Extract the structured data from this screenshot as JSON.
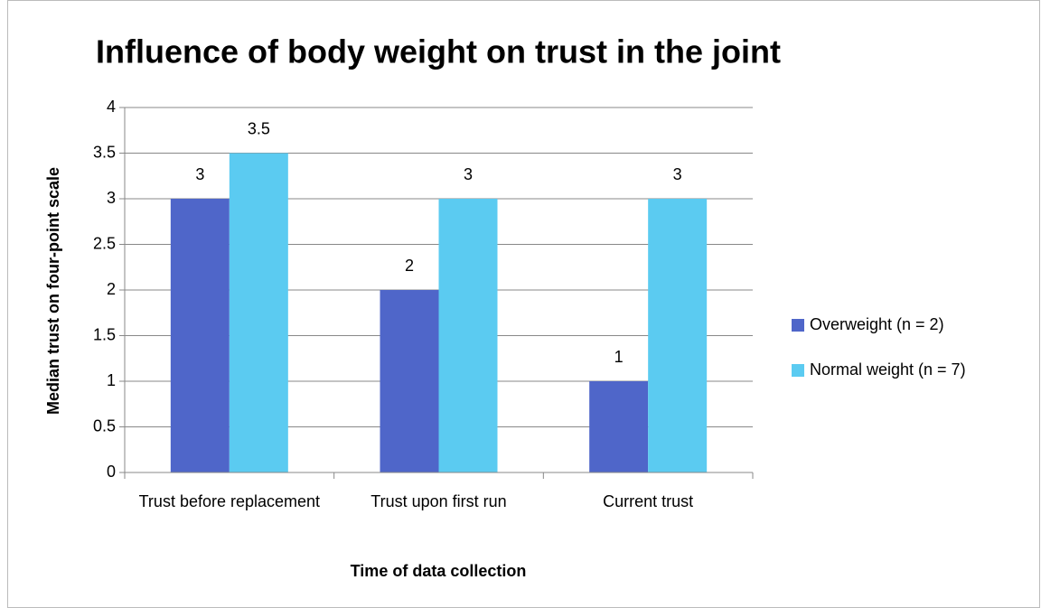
{
  "chart_data": {
    "type": "bar",
    "title": "Influence of body weight on trust in the joint",
    "x_label": "Time of data collection",
    "y_label": "Median trust on four-point scale",
    "categories": [
      "Trust before replacement",
      "Trust upon first run",
      "Current trust"
    ],
    "series": [
      {
        "name": "Overweight (n = 2)",
        "color": "#4f66c9",
        "values": [
          3,
          2,
          1
        ]
      },
      {
        "name": "Normal weight (n = 7)",
        "color": "#5bcbf1",
        "values": [
          3.5,
          3,
          3
        ]
      }
    ],
    "ylim": [
      0,
      4
    ],
    "yticks": [
      0,
      0.5,
      1,
      1.5,
      2,
      2.5,
      3,
      3.5,
      4
    ],
    "grid": true,
    "legend": "right"
  }
}
